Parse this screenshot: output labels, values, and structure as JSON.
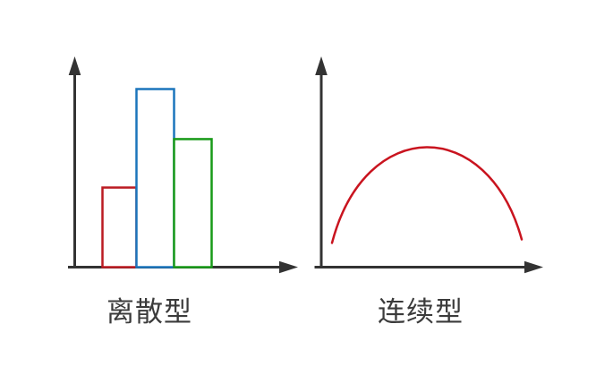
{
  "page": {
    "background": "#ffffff",
    "axis_color": "#333333",
    "text_color": "#3b3b3b"
  },
  "chart_data": [
    {
      "type": "bar",
      "title": "离散型",
      "xlabel": "",
      "ylabel": "",
      "axes": {
        "ticks": false,
        "tick_labels": false,
        "arrows": true,
        "color": "#333333"
      },
      "bar_style": "outline-only, white fill",
      "values_relative": [
        0.447,
        1.0,
        0.719
      ],
      "bar_colors": [
        "#bb1b22",
        "#1b75bc",
        "#189a18"
      ],
      "legend": "none",
      "grid": false
    },
    {
      "type": "line",
      "title": "连续型",
      "xlabel": "",
      "ylabel": "",
      "axes": {
        "ticks": false,
        "tick_labels": false,
        "arrows": true,
        "color": "#333333"
      },
      "curve_shape": "smooth dome (single hump)",
      "points_relative": [
        {
          "x": 0.0,
          "y": 0.116
        },
        {
          "x": 0.5,
          "y": 0.575
        },
        {
          "x": 1.0,
          "y": 0.133
        }
      ],
      "line_color": "#c9141f",
      "legend": "none",
      "grid": false
    }
  ]
}
